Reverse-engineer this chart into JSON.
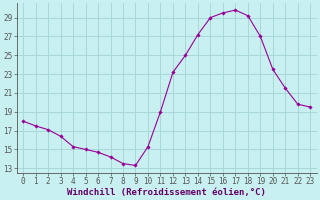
{
  "hours": [
    0,
    1,
    2,
    3,
    4,
    5,
    6,
    7,
    8,
    9,
    10,
    11,
    12,
    13,
    14,
    15,
    16,
    17,
    18,
    19,
    20,
    21,
    22,
    23
  ],
  "windchill": [
    18.0,
    17.5,
    17.1,
    16.4,
    15.3,
    15.0,
    14.7,
    14.2,
    13.5,
    13.3,
    15.3,
    19.0,
    23.2,
    25.0,
    27.2,
    29.0,
    29.5,
    29.8,
    29.2,
    27.0,
    23.5,
    21.5,
    19.8,
    19.5
  ],
  "line_color": "#990099",
  "marker": "D",
  "marker_size": 1.8,
  "bg_color": "#c8f0f0",
  "grid_color": "#a8d8d8",
  "xlabel": "Windchill (Refroidissement éolien,°C)",
  "xlabel_fontsize": 6.5,
  "ylabel_ticks": [
    13,
    15,
    17,
    19,
    21,
    23,
    25,
    27,
    29
  ],
  "xlim": [
    -0.5,
    23.5
  ],
  "ylim": [
    12.5,
    30.5
  ],
  "tick_fontsize": 5.5
}
